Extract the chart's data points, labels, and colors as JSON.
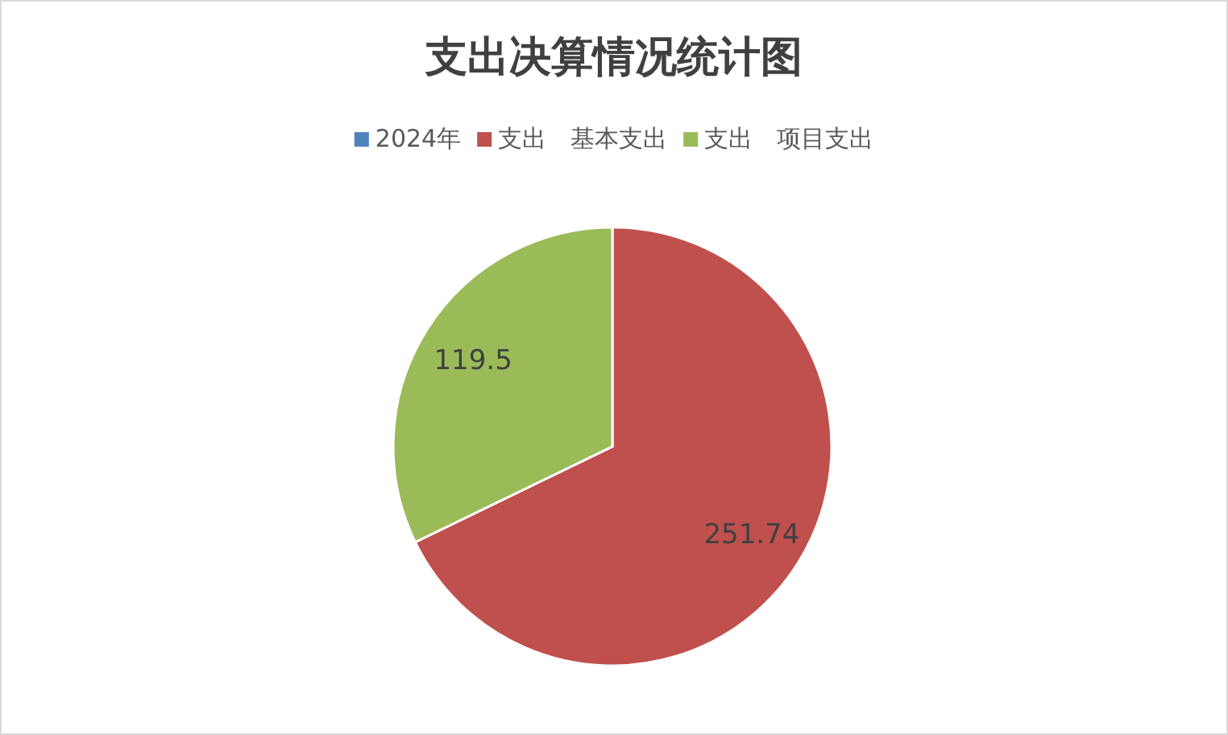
{
  "chart_data": {
    "type": "pie",
    "title": "支出决算情况统计图",
    "categories": [
      "2024年",
      "支出　基本支出",
      "支出　项目支出"
    ],
    "values": [
      null,
      251.74,
      119.5
    ],
    "colors": [
      "#4f81bd",
      "#c0504d",
      "#9bbb59"
    ],
    "data_labels": true,
    "legend": "top"
  }
}
